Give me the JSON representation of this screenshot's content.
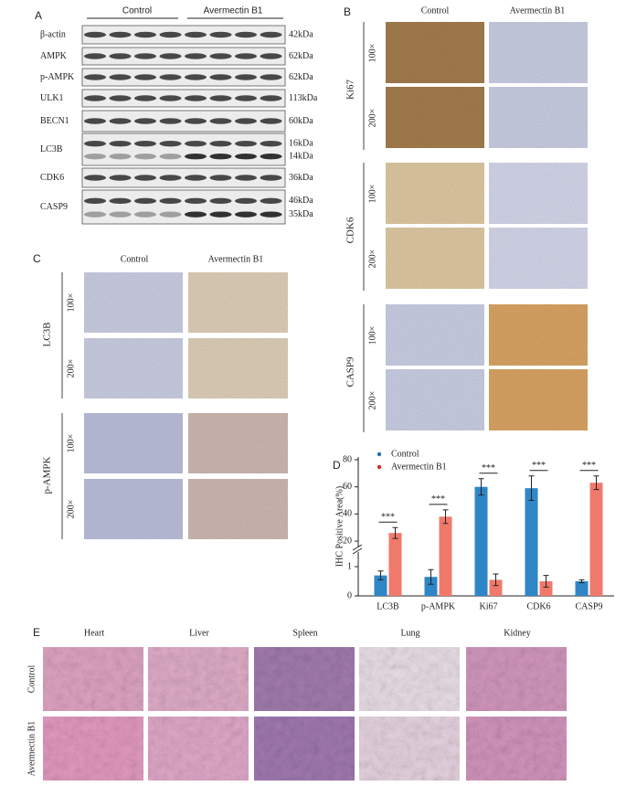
{
  "panel_a": {
    "letter": "A",
    "groups": [
      "Control",
      "Avermectin B1"
    ],
    "rows": [
      {
        "name": "β-actin",
        "sizes": [
          "42kDa"
        ]
      },
      {
        "name": "AMPK",
        "sizes": [
          "62kDa"
        ]
      },
      {
        "name": "p-AMPK",
        "sizes": [
          "62kDa"
        ]
      },
      {
        "name": "ULK1",
        "sizes": [
          "113kDa"
        ]
      },
      {
        "name": "BECN1",
        "sizes": [
          "60kDa"
        ]
      },
      {
        "name": "LC3B",
        "sizes": [
          "16kDa",
          "14kDa"
        ]
      },
      {
        "name": "CDK6",
        "sizes": [
          "36kDa"
        ]
      },
      {
        "name": "CASP9",
        "sizes": [
          "46kDa",
          "35kDa"
        ]
      }
    ]
  },
  "panel_b": {
    "letter": "B",
    "columns": [
      "Control",
      "Avermectin B1"
    ],
    "rows": [
      {
        "name": "Ki67",
        "mags": [
          "100×",
          "200×"
        ]
      },
      {
        "name": "CDK6",
        "mags": [
          "100×",
          "200×"
        ]
      },
      {
        "name": "CASP9",
        "mags": [
          "100×",
          "200×"
        ]
      }
    ]
  },
  "panel_c": {
    "letter": "C",
    "columns": [
      "Control",
      "Avermectin B1"
    ],
    "rows": [
      {
        "name": "LC3B",
        "mags": [
          "100×",
          "200×"
        ]
      },
      {
        "name": "p-AMPK",
        "mags": [
          "100×",
          "200×"
        ]
      }
    ]
  },
  "chart_data": {
    "type": "bar",
    "letter": "D",
    "ylabel": "IHC Positive Area(%)",
    "categories": [
      "LC3B",
      "p-AMPK",
      "Ki67",
      "CDK6",
      "CASP9"
    ],
    "series": [
      {
        "name": "Control",
        "color": "#2f86c6",
        "values": [
          0.7,
          0.65,
          60,
          59,
          0.5
        ],
        "errors": [
          0.15,
          0.25,
          6,
          9,
          0.05
        ]
      },
      {
        "name": "Avermectin B1",
        "color": "#ef7a6c",
        "values": [
          26,
          38,
          0.55,
          0.5,
          63
        ],
        "errors": [
          4,
          5,
          0.2,
          0.2,
          5
        ]
      }
    ],
    "legend_colors": [
      "#1f6fb0",
      "#d92b2b"
    ],
    "significance": [
      "***",
      "***",
      "***",
      "***",
      "***"
    ],
    "segments": [
      {
        "ylim": [
          0,
          1.5
        ],
        "yticks": [
          0,
          1
        ]
      },
      {
        "ylim": [
          16,
          82
        ],
        "yticks": [
          20,
          40,
          60,
          80
        ]
      }
    ]
  },
  "panel_e": {
    "letter": "E",
    "columns": [
      "Heart",
      "Liver",
      "Spleen",
      "Lung",
      "Kidney"
    ],
    "rows": [
      "Control",
      "Avermectin B1"
    ]
  }
}
